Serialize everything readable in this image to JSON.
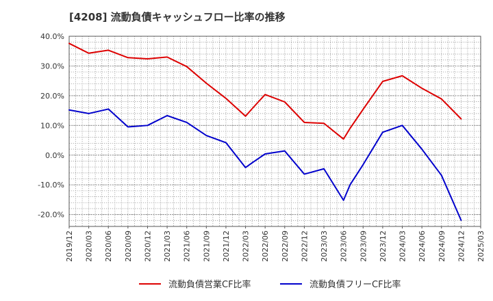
{
  "chart_data": {
    "type": "line",
    "title": "[4208]  流動負債キャッシュフロー比率の推移",
    "xlabel": "",
    "ylabel": "",
    "x_tick_labels": [
      "2019/12",
      "2020/03",
      "2020/06",
      "2020/09",
      "2020/12",
      "2021/03",
      "2021/06",
      "2021/09",
      "2021/12",
      "2022/03",
      "2022/06",
      "2022/09",
      "2022/12",
      "2023/03",
      "2023/06",
      "2023/09",
      "2023/12",
      "2024/03",
      "2024/06",
      "2024/09",
      "2024/12",
      "2025/03"
    ],
    "y_tick_labels": [
      "40.0%",
      "30.0%",
      "20.0%",
      "10.0%",
      "0.0%",
      "-10.0%",
      "-20.0%"
    ],
    "y_ticks": [
      40,
      30,
      20,
      10,
      0,
      -10,
      -20
    ],
    "ylim": [
      -24,
      40
    ],
    "xlim": [
      "2019/12",
      "2025/03"
    ],
    "grid": true,
    "legend_position": "bottom",
    "series": [
      {
        "name": "流動負債営業CF比率",
        "color": "#dd0000",
        "x": [
          "2019/12",
          "2020/03",
          "2020/06",
          "2020/09",
          "2020/12",
          "2021/03",
          "2021/06",
          "2021/09",
          "2021/12",
          "2022/03",
          "2022/04",
          "2022/06",
          "2022/09",
          "2022/12",
          "2023/03",
          "2023/06",
          "2023/07",
          "2023/09",
          "2023/12",
          "2024/03",
          "2024/06",
          "2024/09",
          "2024/12"
        ],
        "values": [
          37.6,
          34.3,
          35.3,
          32.8,
          32.4,
          33.0,
          29.8,
          24.2,
          19.1,
          13.1,
          15.6,
          20.4,
          17.9,
          11.0,
          10.7,
          5.4,
          9.0,
          15.4,
          24.8,
          26.7,
          22.5,
          18.9,
          12.2
        ]
      },
      {
        "name": "流動負債フリーCF比率",
        "color": "#0000cc",
        "x": [
          "2019/12",
          "2020/03",
          "2020/06",
          "2020/09",
          "2020/12",
          "2021/03",
          "2021/06",
          "2021/09",
          "2021/12",
          "2022/03",
          "2022/04",
          "2022/06",
          "2022/09",
          "2022/12",
          "2023/03",
          "2023/06",
          "2023/07",
          "2023/09",
          "2023/12",
          "2024/03",
          "2024/06",
          "2024/09",
          "2024/12"
        ],
        "values": [
          15.2,
          14.0,
          15.5,
          9.5,
          10.0,
          13.3,
          11.0,
          6.6,
          4.2,
          -4.2,
          -2.6,
          0.4,
          1.4,
          -6.4,
          -4.6,
          -15.2,
          -10.0,
          -3.2,
          7.7,
          10.0,
          2.0,
          -6.8,
          -21.9
        ]
      }
    ]
  }
}
